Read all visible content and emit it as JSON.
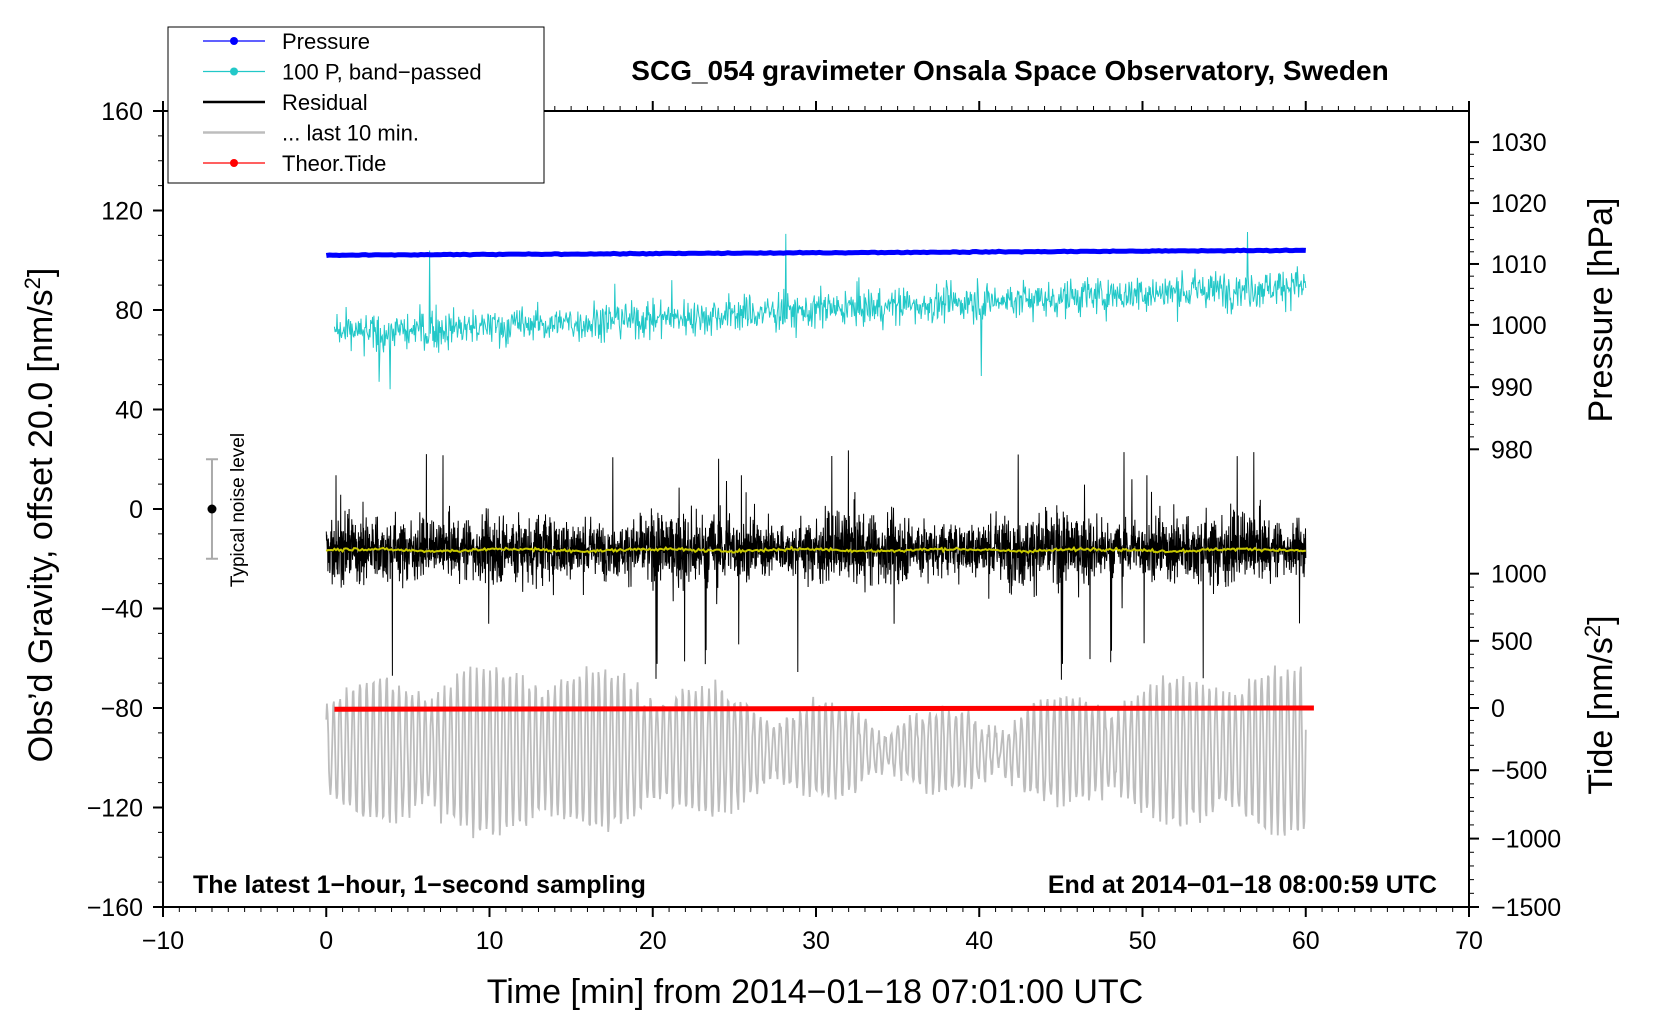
{
  "chart_data": {
    "type": "line",
    "title": "SCG_054 gravimeter Onsala Space Observatory, Sweden",
    "xlabel": "Time [min] from 2014−01−18 07:01:00 UTC",
    "ylabel_main": "Obs’d Gravity, offset 20.0 [nm/s",
    "ylabel_main_sup": "2",
    "ylabel_main_end": "]",
    "ylabel_pressure": "Pressure [hPa]",
    "ylabel_tide": "Tide [nm/s",
    "ylabel_tide_sup": "2",
    "ylabel_tide_end": "]",
    "xlim": [
      -10,
      70
    ],
    "ylim": [
      -160,
      160
    ],
    "x_ticks": [
      -10,
      0,
      10,
      20,
      30,
      40,
      50,
      60,
      70
    ],
    "x_tick_labels": [
      "−10",
      "0",
      "10",
      "20",
      "30",
      "40",
      "50",
      "60",
      "70"
    ],
    "y_ticks": [
      -160,
      -120,
      -80,
      -40,
      0,
      40,
      80,
      120,
      160
    ],
    "y_tick_labels": [
      "−160",
      "−120",
      "−80",
      "−40",
      "0",
      "40",
      "80",
      "120",
      "160"
    ],
    "pressure_axis": {
      "ticks": [
        980,
        990,
        1000,
        1010,
        1020,
        1030
      ],
      "tick_labels": [
        "980",
        "990",
        "1000",
        "1010",
        "1020",
        "1030"
      ],
      "tick_y_main": [
        24,
        49,
        74,
        98.5,
        123,
        147.5
      ]
    },
    "tide_axis": {
      "ticks": [
        -1500,
        -1000,
        -500,
        0,
        500,
        1000
      ],
      "tick_labels": [
        "−1500",
        "−1000",
        "−500",
        "0",
        "500",
        "1000"
      ],
      "tick_y_main": [
        -160,
        -132.5,
        -105,
        -80,
        -53,
        -26
      ]
    },
    "legend": [
      {
        "label": "Pressure",
        "color": "#0000ff",
        "marker": "dot"
      },
      {
        "label": "100 P, band−passed",
        "color": "#22c8c8",
        "marker": "dot"
      },
      {
        "label": "Residual",
        "color": "#000000",
        "marker": "none"
      },
      {
        "label": "... last 10 min.",
        "color": "#bdbdbd",
        "marker": "none"
      },
      {
        "label": "Theor.Tide",
        "color": "#ff0000",
        "marker": "dot"
      }
    ],
    "annotations": {
      "left": "The latest 1−hour, 1−second sampling",
      "right": "End at 2014−01−18 08:00:59 UTC"
    },
    "noise_level": {
      "label": "Typical noise level",
      "x": -7,
      "center": 0,
      "half_range": 20
    },
    "series": [
      {
        "name": "Pressure",
        "color": "#0000ff",
        "x_start": 0,
        "x_end": 60,
        "y_start": 102,
        "y_end": 104
      },
      {
        "name": "100 P, band−passed",
        "color": "#22c8c8",
        "x_start": 0.5,
        "x_end": 60,
        "center_start": 70,
        "center_end": 90,
        "amplitude": 12
      },
      {
        "name": "Residual",
        "color": "#000000",
        "x_start": 0,
        "x_end": 60,
        "center": -16,
        "amplitude": 22
      },
      {
        "name": "Residual smoothed",
        "color": "#c8c800",
        "x_start": 0,
        "x_end": 60,
        "center": -16.5
      },
      {
        "name": "... last 10 min.",
        "color": "#bdbdbd",
        "x_start": 0,
        "x_end": 60,
        "center": -97,
        "amplitude": 25
      },
      {
        "name": "Theor.Tide",
        "color": "#ff0000",
        "x_start": 0.5,
        "x_end": 60.5,
        "y_start": -80.5,
        "y_end": -80
      }
    ],
    "colors": {
      "pressure": "#0000ff",
      "band_passed": "#22c8c8",
      "residual": "#000000",
      "smoothed": "#c8c800",
      "last10": "#bdbdbd",
      "tide": "#ff0000",
      "noise_bar": "#aaaaaa"
    }
  }
}
